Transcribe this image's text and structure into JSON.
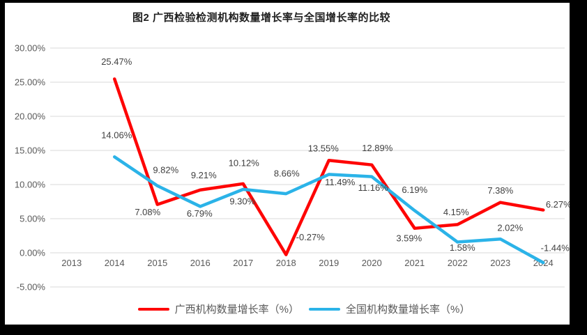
{
  "window": {
    "frame_background": "#000000",
    "chart_background": "#ffffff"
  },
  "chart_data": {
    "type": "line",
    "title": "图2 广西检验检测机构数量增长率与全国增长率的比较",
    "categories": [
      "2013",
      "2014",
      "2015",
      "2016",
      "2017",
      "2018",
      "2019",
      "2020",
      "2021",
      "2022",
      "2023",
      "2024"
    ],
    "y_ticks": [
      "30.00%",
      "25.00%",
      "20.00%",
      "15.00%",
      "10.00%",
      "5.00%",
      "0.00%",
      "-5.00%"
    ],
    "ylim": [
      -5,
      30
    ],
    "y_step": 5,
    "grid": true,
    "data_labels": true,
    "legend_position": "bottom",
    "colors": {
      "grid": "#d9d9d9",
      "axis_text": "#595959",
      "data_label": "#404040",
      "title": "#1f1f1f"
    },
    "series": [
      {
        "name": "广西机构数量增长率（%）",
        "color": "#fe0505",
        "values": [
          null,
          25.47,
          7.08,
          9.21,
          10.12,
          -0.27,
          13.55,
          12.89,
          3.59,
          4.15,
          7.38,
          6.27
        ],
        "label_offsets": [
          null,
          [
            3,
            -25
          ],
          [
            -14,
            11
          ],
          [
            5,
            -21
          ],
          [
            1,
            -30
          ],
          [
            35,
            -25
          ],
          [
            -8,
            -17
          ],
          [
            8,
            -24
          ],
          [
            -8,
            14
          ],
          [
            -2,
            -18
          ],
          [
            0,
            -17
          ],
          [
            22,
            -8
          ]
        ]
      },
      {
        "name": "全国机构数量增长率（%）",
        "color": "#2bb3e8",
        "values": [
          null,
          14.06,
          9.82,
          6.79,
          9.3,
          8.66,
          11.49,
          11.16,
          6.19,
          1.58,
          2.02,
          -1.44
        ],
        "label_offsets": [
          null,
          [
            3,
            -31
          ],
          [
            12,
            -23
          ],
          [
            -1,
            10
          ],
          [
            -1,
            17
          ],
          [
            1,
            -29
          ],
          [
            16,
            11
          ],
          [
            2,
            16
          ],
          [
            0,
            -30
          ],
          [
            7,
            8
          ],
          [
            14,
            -16
          ],
          [
            17,
            -21
          ]
        ]
      }
    ]
  }
}
